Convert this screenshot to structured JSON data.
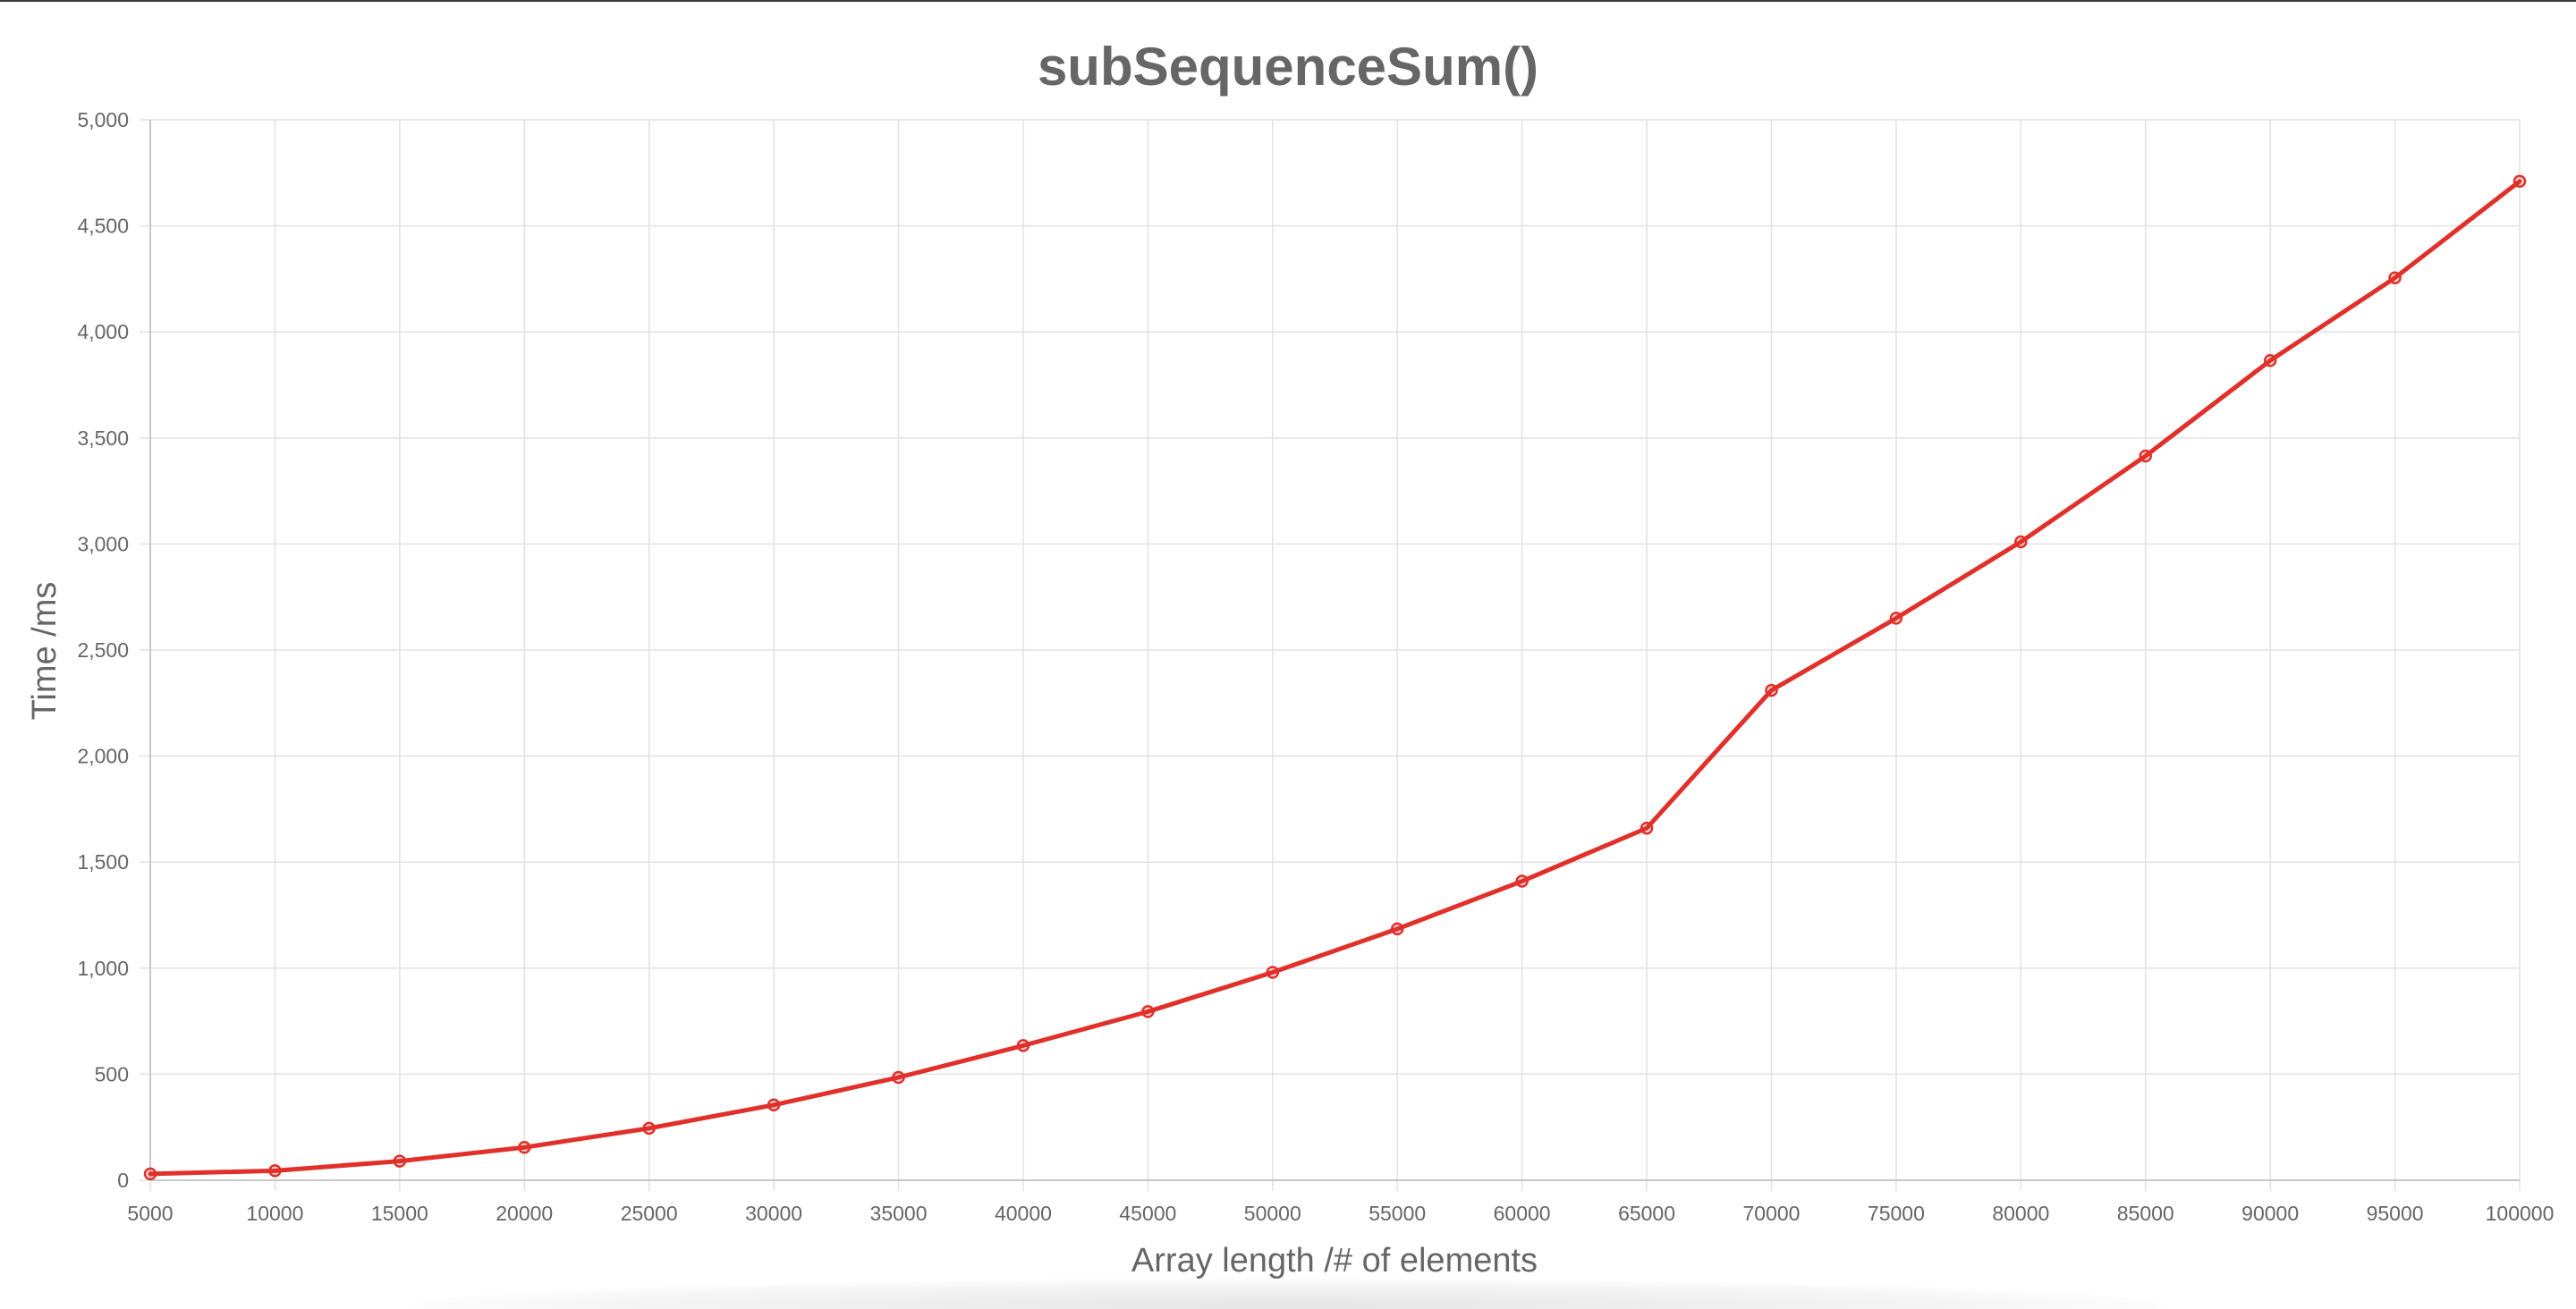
{
  "chart_data": {
    "type": "line",
    "title": "subSequenceSum()",
    "xlabel": "Array length /# of elements",
    "ylabel": "Time /ms",
    "categories": [
      "5000",
      "10000",
      "15000",
      "20000",
      "25000",
      "30000",
      "35000",
      "40000",
      "45000",
      "50000",
      "55000",
      "60000",
      "65000",
      "70000",
      "75000",
      "80000",
      "85000",
      "90000",
      "95000",
      "100000"
    ],
    "series": [
      {
        "values": [
          30,
          45,
          90,
          155,
          245,
          355,
          485,
          635,
          795,
          980,
          1185,
          1410,
          1660,
          2310,
          2650,
          3010,
          3415,
          3865,
          4255,
          4710
        ]
      }
    ],
    "ylim": [
      0,
      5000
    ],
    "yticks": [
      "0",
      "500",
      "1,000",
      "1,500",
      "2,000",
      "2,500",
      "3,000",
      "3,500",
      "4,000",
      "4,500",
      "5,000"
    ],
    "grid": true,
    "colors": {
      "line": "#e1302a",
      "grid": "#e2e2e2",
      "text": "#666666"
    }
  }
}
